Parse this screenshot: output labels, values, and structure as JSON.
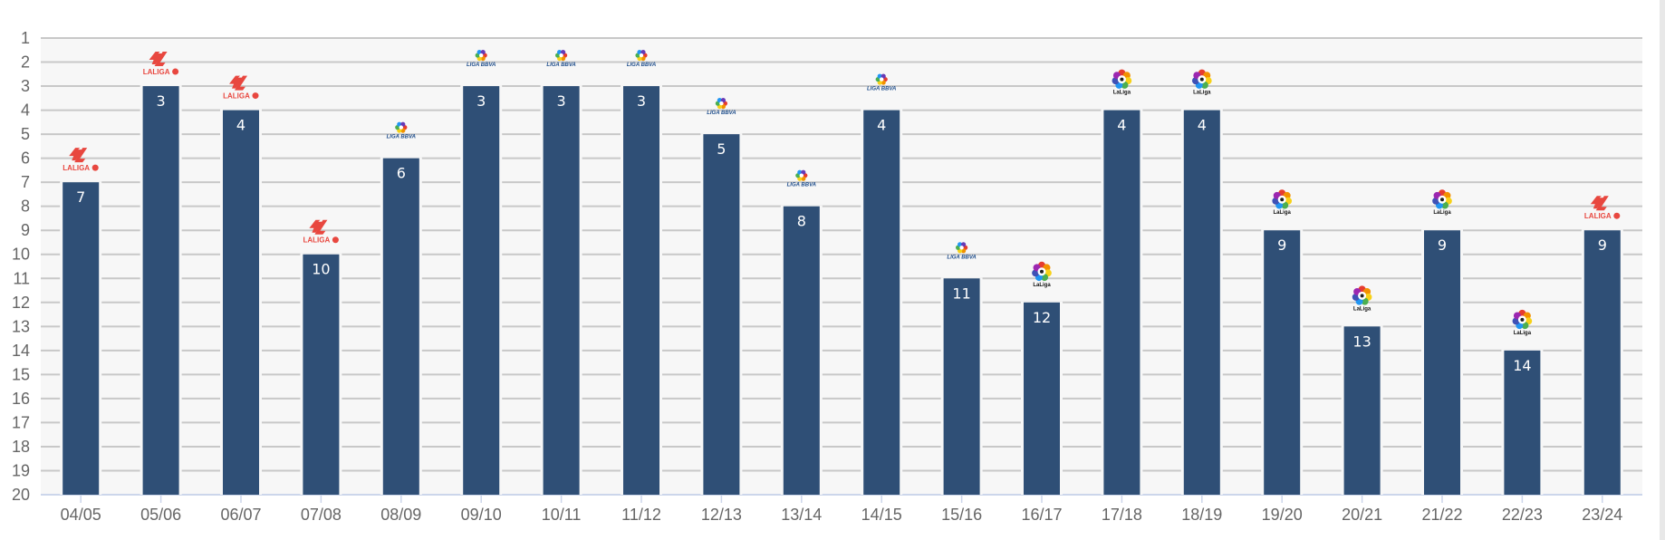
{
  "chart_data": {
    "type": "bar",
    "title": "",
    "xlabel": "",
    "ylabel": "",
    "y_axis": {
      "inverted": true,
      "min": 1,
      "max": 20,
      "ticks": [
        1,
        2,
        3,
        4,
        5,
        6,
        7,
        8,
        9,
        10,
        11,
        12,
        13,
        14,
        15,
        16,
        17,
        18,
        19,
        20
      ]
    },
    "grid": true,
    "legend": null,
    "categories": [
      "04/05",
      "05/06",
      "06/07",
      "07/08",
      "08/09",
      "09/10",
      "10/11",
      "11/12",
      "12/13",
      "13/14",
      "14/15",
      "15/16",
      "16/17",
      "17/18",
      "18/19",
      "19/20",
      "20/21",
      "21/22",
      "22/23",
      "23/24"
    ],
    "values": [
      7,
      3,
      4,
      10,
      6,
      3,
      3,
      3,
      5,
      8,
      4,
      11,
      12,
      4,
      4,
      9,
      13,
      9,
      14,
      9
    ],
    "annotations": [
      "LaLiga (new red logo)",
      "LaLiga (new red logo)",
      "LaLiga (new red logo)",
      "LaLiga (new red logo)",
      "Liga BBVA",
      "Liga BBVA",
      "Liga BBVA",
      "Liga BBVA",
      "Liga BBVA",
      "Liga BBVA",
      "Liga BBVA",
      "Liga BBVA",
      "LaLiga",
      "LaLiga",
      "LaLiga",
      "LaLiga",
      "LaLiga",
      "LaLiga",
      "LaLiga",
      "LaLiga (new red logo)"
    ],
    "logo_types": [
      "laliga-red",
      "laliga-red",
      "laliga-red",
      "laliga-red",
      "liga-bbva",
      "liga-bbva",
      "liga-bbva",
      "liga-bbva",
      "liga-bbva",
      "liga-bbva",
      "liga-bbva",
      "liga-bbva",
      "laliga-color",
      "laliga-color",
      "laliga-color",
      "laliga-color",
      "laliga-color",
      "laliga-color",
      "laliga-color",
      "laliga-red"
    ]
  },
  "logos": {
    "laliga-red": {
      "text": "LALIGA",
      "color": "#e8473f"
    },
    "liga-bbva": {
      "text": "LIGA BBVA",
      "color": "#1f4e8c"
    },
    "laliga-color": {
      "text": "LaLiga",
      "color": "#111111"
    }
  },
  "colors": {
    "bar": "#2f4f76",
    "plot_bg": "#f7f7f7",
    "grid": "#c8c8c8",
    "axis": "#ccd6eb",
    "tick_text": "#666666"
  }
}
